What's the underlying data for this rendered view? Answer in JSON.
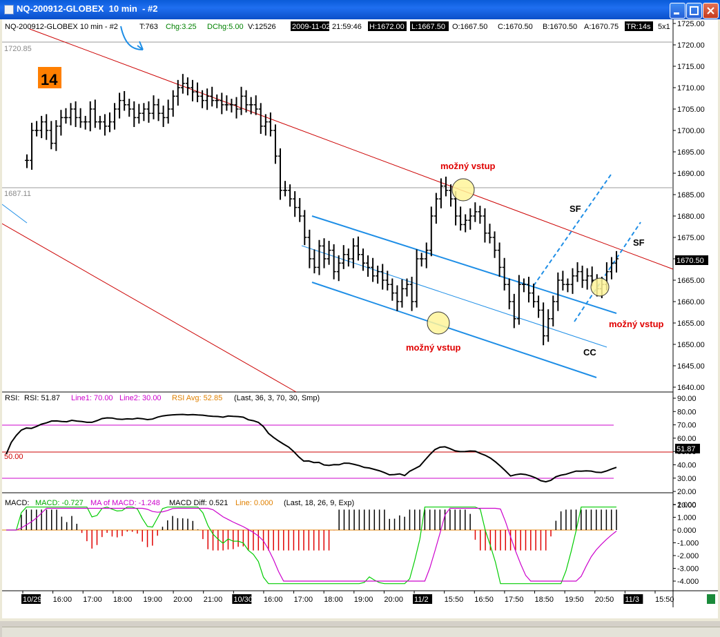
{
  "window": {
    "title": "NQ-200912-GLOBEX  10 min  - #2",
    "controls": {
      "minimize": "minimize-icon",
      "maximize": "maximize-icon",
      "close": "close-icon"
    }
  },
  "header": {
    "symbol": "NQ-200912-GLOBEX  10 min  - #2",
    "ticks": "T:763",
    "chg": "Chg:3.25",
    "dchg": "DChg:5.00",
    "volume": "V:12526",
    "date": "2009-11-02",
    "time": "21:59:46",
    "high": "H:1672.00",
    "low": "L:1667.50",
    "open": "O:1667.50",
    "close": "C:1670.50",
    "bid": "B:1670.50",
    "ask": "A:1670.75",
    "tr": "TR:14s",
    "extra": "5x1"
  },
  "colors": {
    "header_green": "#008000",
    "red_line": "#cc0000",
    "blue_channel": "#1e8ee6",
    "annotation_red": "#e00000",
    "highlight": "#fff59a",
    "badge": "#ff7f00",
    "rsi_band": "#cc00cc",
    "macd_line": "#00cc00",
    "macd_signal": "#cc00cc"
  },
  "badge": "14",
  "annotations": {
    "entry_label": "možný vstup",
    "sf": "SF",
    "cc": "CC"
  },
  "reference_lines": [
    "1720.85",
    "1687.11"
  ],
  "price_axis": [
    "1725.00",
    "1720.00",
    "1715.00",
    "1710.00",
    "1705.00",
    "1700.00",
    "1695.00",
    "1690.00",
    "1685.00",
    "1680.00",
    "1675.00",
    "1670.00",
    "1665.00",
    "1660.00",
    "1655.00",
    "1650.00",
    "1645.00",
    "1640.00"
  ],
  "last_price": "1670.50",
  "rsi": {
    "label": "RSI:",
    "value": "RSI: 51.87",
    "line1": "Line1: 70.00",
    "line2": "Line2: 30.00",
    "avg": "RSI Avg: 52.85",
    "params": "(Last, 36, 3, 70, 30, Smp)",
    "mid_label": "50.00",
    "last": "51.87",
    "axis": [
      "90.00",
      "80.00",
      "70.00",
      "60.00",
      "50.00",
      "40.00",
      "30.00",
      "20.00",
      "10.00"
    ]
  },
  "macd": {
    "label": "MACD:",
    "macd": "MACD: -0.727",
    "ma": "MA of MACD: -1.248",
    "diff": "MACD Diff: 0.521",
    "line": "Line: 0.000",
    "params": "(Last, 18, 26, 9, Exp)",
    "axis": [
      "2.000",
      "1.000",
      "0.000",
      "-1.000",
      "-2.000",
      "-3.000",
      "-4.000"
    ]
  },
  "time_axis": [
    {
      "label": "10/29",
      "date": true
    },
    {
      "label": "16:00"
    },
    {
      "label": "17:00"
    },
    {
      "label": "18:00"
    },
    {
      "label": "19:00"
    },
    {
      "label": "20:00"
    },
    {
      "label": "21:00"
    },
    {
      "label": "10/30",
      "date": true
    },
    {
      "label": "16:00"
    },
    {
      "label": "17:00"
    },
    {
      "label": "18:00"
    },
    {
      "label": "19:00"
    },
    {
      "label": "20:00"
    },
    {
      "label": "11/2",
      "date": true
    },
    {
      "label": "15:50"
    },
    {
      "label": "16:50"
    },
    {
      "label": "17:50"
    },
    {
      "label": "18:50"
    },
    {
      "label": "19:50"
    },
    {
      "label": "20:50"
    },
    {
      "label": "11/3",
      "date": true
    },
    {
      "label": "15:50"
    }
  ],
  "chart_data": {
    "type": "ohlc",
    "title": "NQ-200912-GLOBEX  10 min  - #2",
    "y_range": [
      1639,
      1726
    ],
    "close_series": [
      1693,
      1700,
      1700,
      1702,
      1700,
      1697,
      1701,
      1703,
      1703,
      1705,
      1703,
      1702,
      1702,
      1705,
      1702,
      1702,
      1701,
      1702,
      1705,
      1707,
      1706,
      1705,
      1703,
      1704,
      1705,
      1704,
      1706,
      1704,
      1703,
      1705,
      1708,
      1710,
      1711,
      1710,
      1709,
      1708,
      1707,
      1708,
      1707,
      1707,
      1706,
      1706,
      1706,
      1705,
      1708,
      1706,
      1706,
      1705,
      1701,
      1702,
      1700,
      1694,
      1686,
      1686,
      1684,
      1682,
      1680,
      1675,
      1670,
      1668,
      1673,
      1670,
      1672,
      1667,
      1669,
      1671,
      1670,
      1673,
      1671,
      1669,
      1668,
      1666,
      1667,
      1665,
      1664,
      1662,
      1660,
      1663,
      1664,
      1660,
      1670,
      1670,
      1672,
      1680,
      1684,
      1687,
      1686,
      1684,
      1680,
      1678,
      1679,
      1680,
      1681,
      1680,
      1676,
      1675,
      1672,
      1668,
      1664,
      1660,
      1656,
      1664,
      1664,
      1662,
      1660,
      1658,
      1652,
      1656,
      1660,
      1665,
      1664,
      1664,
      1666,
      1667,
      1665,
      1666,
      1665,
      1663,
      1664,
      1667,
      1669,
      1670
    ],
    "rsi": {
      "value": 51.87,
      "line1": 70,
      "line2": 30,
      "avg": 52.85
    },
    "macd": {
      "macd": -0.727,
      "ma_of_macd": -1.248,
      "diff": 0.521,
      "line": 0
    }
  }
}
